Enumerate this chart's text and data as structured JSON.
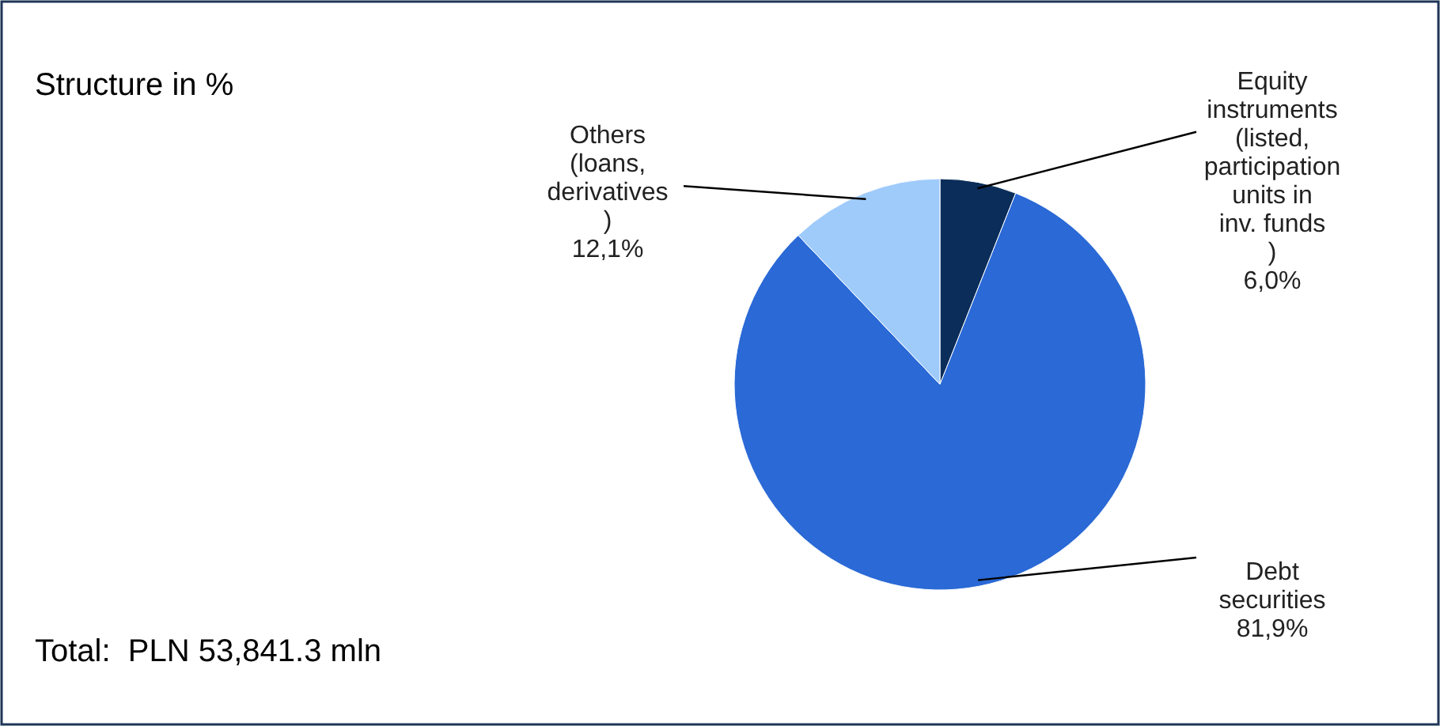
{
  "chart_data": {
    "type": "pie",
    "title": "Structure in %",
    "categories": [
      "Equity instruments (listed, participation units in inv. funds )",
      "Debt securities",
      "Others (loans, derivatives )"
    ],
    "values": [
      6.0,
      81.9,
      12.1
    ],
    "value_labels": [
      "6,0%",
      "81,9%",
      "12,1%"
    ],
    "colors": [
      "#0b2d5a",
      "#2a69d6",
      "#9fcbfb"
    ],
    "annotations": [
      "Total:  PLN 53,841.3 mln"
    ]
  }
}
